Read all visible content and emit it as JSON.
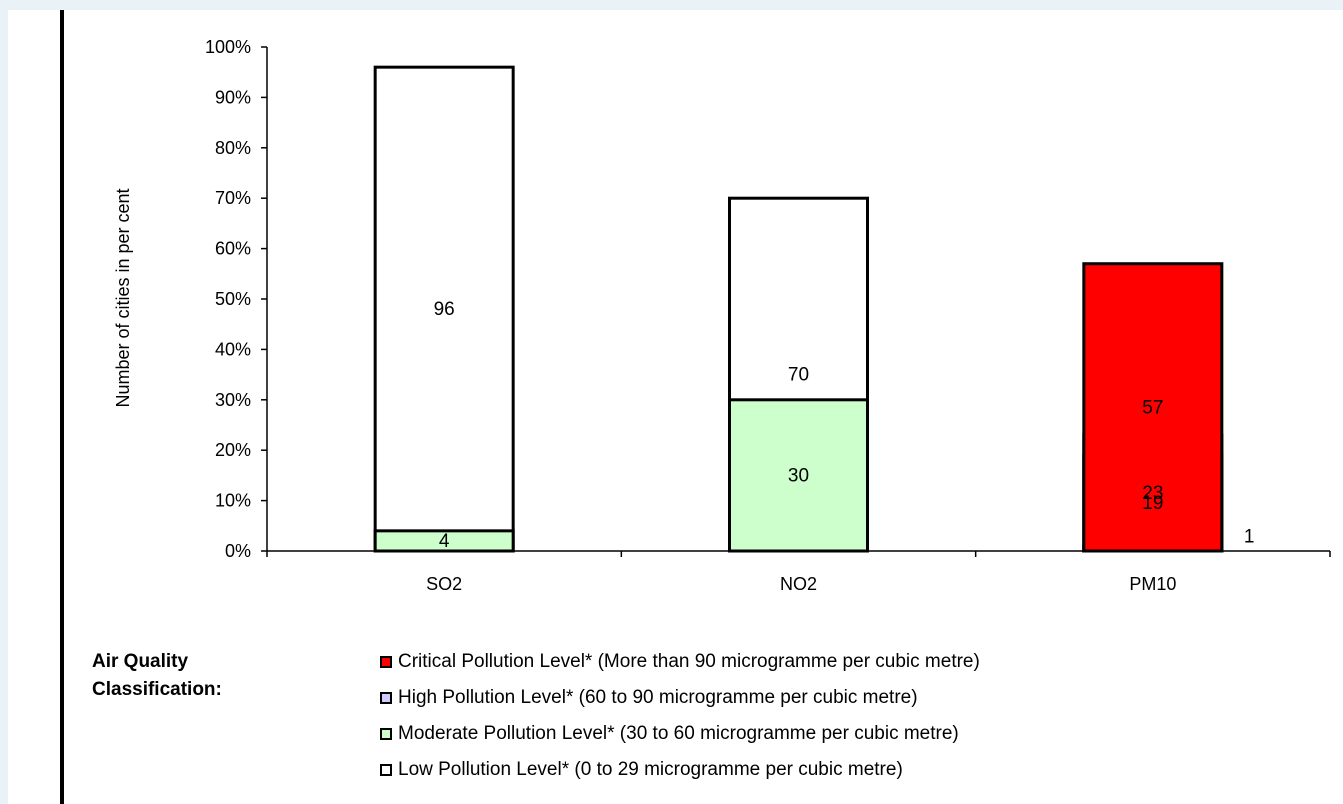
{
  "chart_data": {
    "type": "bar",
    "stacked": true,
    "percent_stacked": true,
    "ylabel": "Number of cities in per cent",
    "ylim": [
      0,
      100
    ],
    "yticks": [
      "0%",
      "10%",
      "20%",
      "30%",
      "40%",
      "50%",
      "60%",
      "70%",
      "80%",
      "90%",
      "100%"
    ],
    "categories": [
      "SO2",
      "NO2",
      "PM10"
    ],
    "series": [
      {
        "name": "Low Pollution Level* (0 to 29 microgramme per cubic metre)",
        "color": "#ffffff",
        "values": [
          96,
          70,
          1
        ]
      },
      {
        "name": "Moderate Pollution Level* (30 to 60 microgramme per cubic metre)",
        "color": "#ccffcc",
        "values": [
          4,
          30,
          19
        ]
      },
      {
        "name": "High Pollution Level* (60 to 90 microgramme per cubic metre)",
        "color": "#ccccff",
        "values": [
          0,
          0,
          23
        ]
      },
      {
        "name": "Critical Pollution Level* (More than 90 microgramme per cubic metre)",
        "color": "#ff0000",
        "values": [
          0,
          0,
          57
        ]
      }
    ],
    "grid": false,
    "legend_position": "bottom"
  },
  "legend": {
    "title_line1": "Air Quality",
    "title_line2": "Classification:",
    "items": [
      {
        "label": "Critical Pollution Level* (More than 90 microgramme per cubic metre)",
        "color": "#ff0000",
        "icon": "red-square"
      },
      {
        "label": "High Pollution Level* (60 to 90 microgramme per cubic metre)",
        "color": "#ccccff",
        "icon": "lavender-square"
      },
      {
        "label": "Moderate Pollution Level* (30 to 60 microgramme per cubic metre)",
        "color": "#ccffcc",
        "icon": "light-green-square"
      },
      {
        "label": "Low Pollution Level* (0 to 29 microgramme per cubic metre)",
        "color": "#ffffff",
        "icon": "white-square"
      }
    ]
  }
}
